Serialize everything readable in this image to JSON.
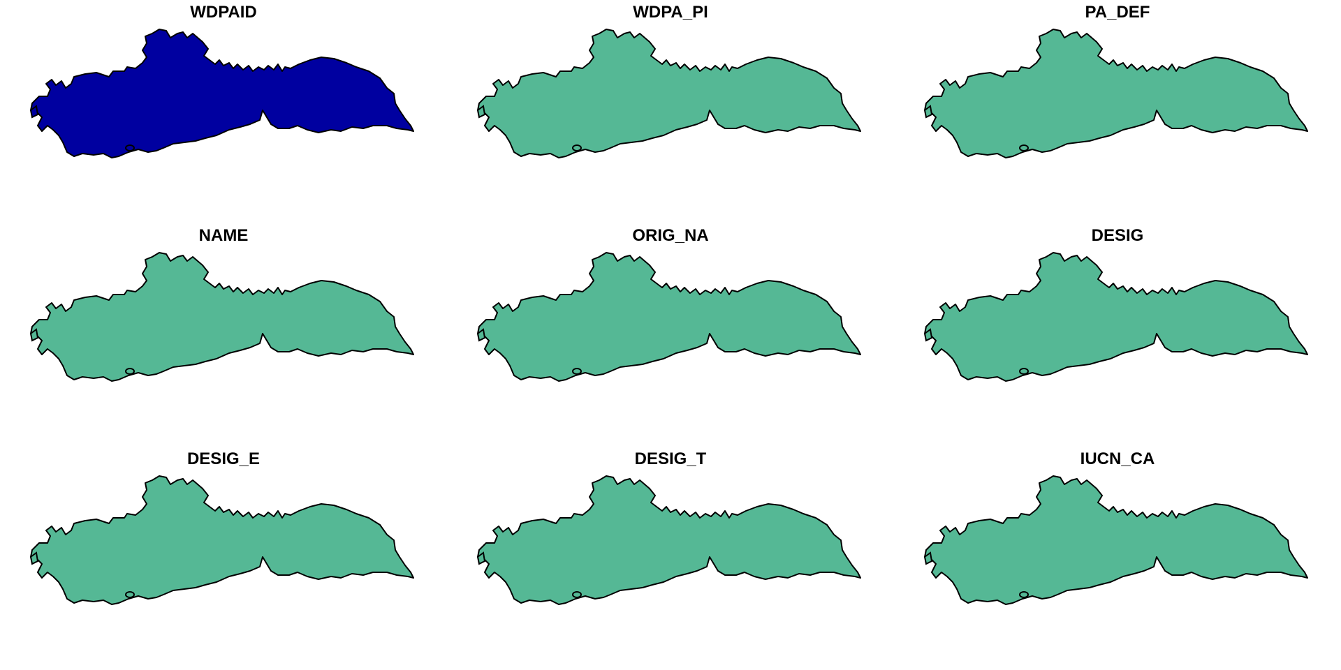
{
  "colors": {
    "background": "#ffffff",
    "outline": "#000000",
    "highlight_fill": "#0000a0",
    "default_fill": "#55b895"
  },
  "panels": [
    {
      "title": "WDPAID",
      "fill": "highlight"
    },
    {
      "title": "WDPA_PI",
      "fill": "default"
    },
    {
      "title": "PA_DEF",
      "fill": "default"
    },
    {
      "title": "NAME",
      "fill": "default"
    },
    {
      "title": "ORIG_NA",
      "fill": "default"
    },
    {
      "title": "DESIG",
      "fill": "default"
    },
    {
      "title": "DESIG_E",
      "fill": "default"
    },
    {
      "title": "DESIG_T",
      "fill": "default"
    },
    {
      "title": "IUCN_CA",
      "fill": "default"
    }
  ]
}
